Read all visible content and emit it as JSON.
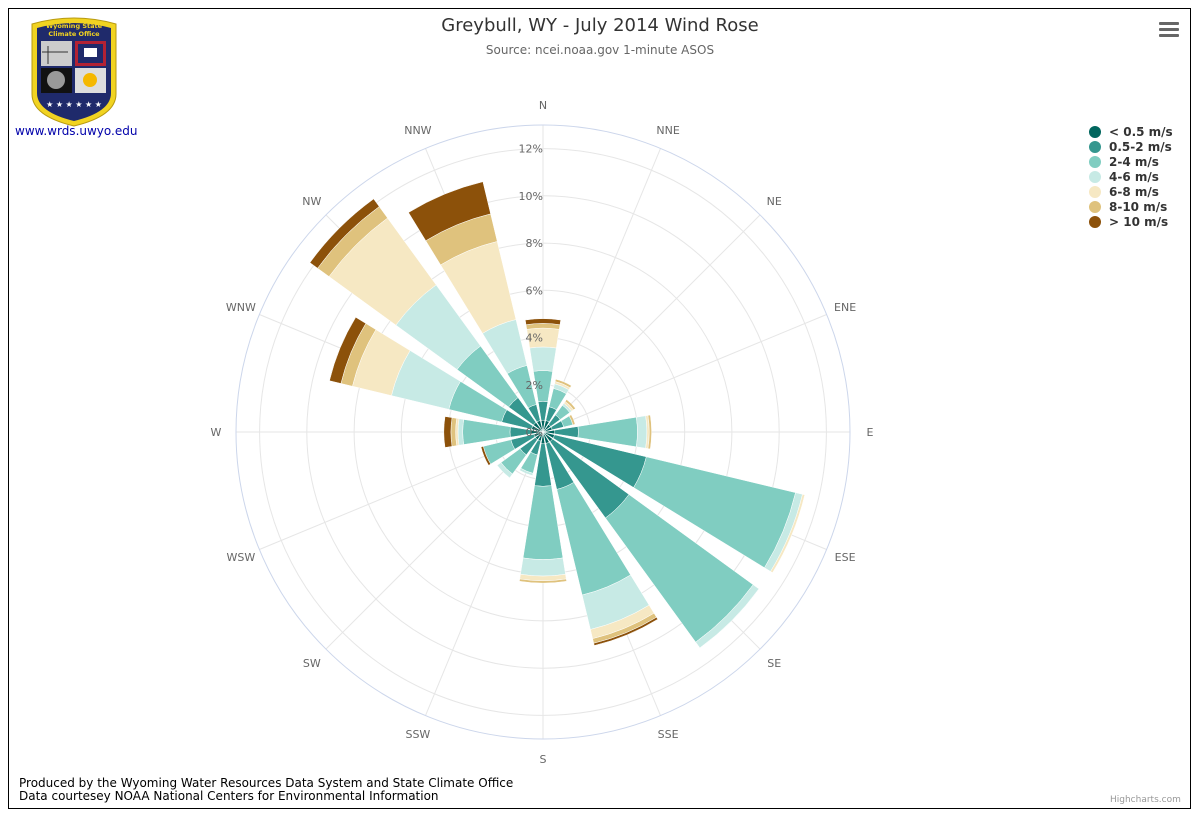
{
  "title": "Greybull, WY - July 2014 Wind Rose",
  "subtitle": "Source: ncei.noaa.gov 1-minute ASOS",
  "logo": {
    "text_line1": "Wyoming State",
    "text_line2": "Climate Office",
    "link": "www.wrds.uwyo.edu"
  },
  "menu_icon": "hamburger-menu-icon",
  "footer": {
    "line1": "Produced by the Wyoming Water Resources Data System and State Climate Office",
    "line2": "Data courtesey NOAA National Centers for Environmental Information"
  },
  "credits": "Highcharts.com",
  "chart_data": {
    "type": "bar",
    "polar": true,
    "stacking": "normal",
    "directions": [
      "N",
      "NNE",
      "NE",
      "ENE",
      "E",
      "ESE",
      "SE",
      "SSE",
      "S",
      "SSW",
      "SW",
      "WSW",
      "W",
      "WNW",
      "NW",
      "NNW"
    ],
    "y_ticks": [
      "0%",
      "2%",
      "4%",
      "6%",
      "8%",
      "10%",
      "12%"
    ],
    "ylim": [
      0,
      13
    ],
    "series": [
      {
        "name": "< 0.5 m/s",
        "color": "#01665e",
        "values": [
          0.5,
          0.5,
          0.4,
          0.4,
          0.5,
          0.5,
          0.5,
          0.5,
          0.5,
          0.4,
          0.4,
          0.4,
          0.5,
          0.5,
          0.5,
          0.5
        ]
      },
      {
        "name": "0.5-2 m/s",
        "color": "#35978f",
        "values": [
          0.8,
          0.6,
          0.5,
          0.5,
          1.0,
          4.0,
          4.0,
          2.0,
          1.8,
          0.6,
          0.8,
          1.0,
          0.9,
          1.3,
          1.3,
          0.7
        ]
      },
      {
        "name": "2-4 m/s",
        "color": "#80cdc1",
        "values": [
          1.3,
          0.8,
          0.5,
          0.4,
          2.5,
          6.5,
          6.5,
          4.6,
          3.1,
          0.8,
          1.0,
          1.2,
          2.0,
          2.3,
          2.7,
          1.7
        ]
      },
      {
        "name": "4-6 m/s",
        "color": "#c7eae5",
        "values": [
          1.0,
          0.2,
          0.1,
          0.0,
          0.4,
          0.3,
          0.3,
          1.5,
          0.7,
          0.1,
          0.2,
          0.0,
          0.2,
          2.5,
          3.2,
          2.0
        ]
      },
      {
        "name": "6-8 m/s",
        "color": "#f6e8c3",
        "values": [
          0.8,
          0.1,
          0.1,
          0.0,
          0.1,
          0.1,
          0.0,
          0.4,
          0.2,
          0.0,
          0.0,
          0.0,
          0.1,
          1.7,
          3.5,
          3.4
        ]
      },
      {
        "name": "8-10 m/s",
        "color": "#dfc27d",
        "values": [
          0.2,
          0.1,
          0.1,
          0.1,
          0.1,
          0.0,
          0.0,
          0.2,
          0.1,
          0.0,
          0.0,
          0.0,
          0.2,
          0.5,
          0.6,
          1.2
        ]
      },
      {
        "name": "> 10 m/s",
        "color": "#8c510a",
        "values": [
          0.2,
          0.0,
          0.0,
          0.0,
          0.0,
          0.0,
          0.0,
          0.1,
          0.0,
          0.0,
          0.0,
          0.1,
          0.3,
          0.5,
          0.4,
          1.4
        ]
      }
    ]
  }
}
